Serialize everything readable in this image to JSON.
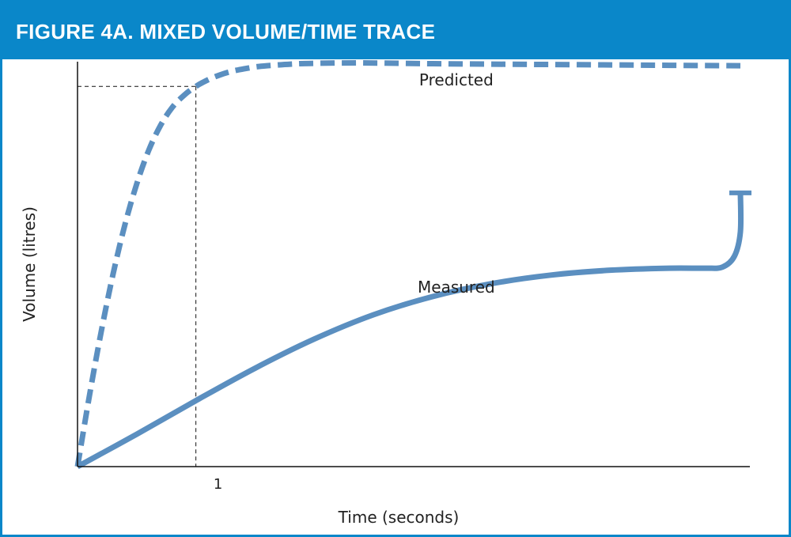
{
  "header": {
    "title": "FIGURE 4A. MIXED VOLUME/TIME TRACE"
  },
  "colors": {
    "header_bg": "#0a87c9",
    "trace": "#5b8fc0",
    "axis": "#111111"
  },
  "chart_data": {
    "type": "line",
    "title": "FIGURE 4A. MIXED VOLUME/TIME TRACE",
    "xlabel": "Time (seconds)",
    "ylabel": "Volume (litres)",
    "x_ticks": [
      1
    ],
    "xlim": [
      0,
      5.68
    ],
    "ylim": [
      0,
      1.0
    ],
    "grid": false,
    "series": [
      {
        "name": "Predicted",
        "style": "dashed",
        "x": [
          0,
          0.1,
          0.2,
          0.3,
          0.4,
          0.5,
          0.6,
          0.7,
          0.8,
          0.9,
          1.0,
          1.1,
          1.2,
          1.3,
          1.4,
          1.5,
          1.6,
          1.8,
          2.0,
          2.4,
          3.0,
          4.0,
          5.0,
          5.6
        ],
        "y": [
          0,
          0.174,
          0.333,
          0.475,
          0.597,
          0.698,
          0.78,
          0.842,
          0.887,
          0.917,
          0.939,
          0.955,
          0.967,
          0.976,
          0.982,
          0.987,
          0.99,
          0.994,
          0.996,
          0.997,
          0.995,
          0.993,
          0.991,
          0.99
        ]
      },
      {
        "name": "Measured",
        "style": "solid",
        "x": [
          0,
          0.5,
          1.0,
          1.5,
          2.0,
          2.5,
          3.0,
          3.5,
          4.0,
          4.5,
          5.0,
          5.3,
          5.45,
          5.55,
          5.6,
          5.6
        ],
        "y": [
          0,
          0.08,
          0.163,
          0.243,
          0.315,
          0.375,
          0.42,
          0.452,
          0.473,
          0.485,
          0.49,
          0.49,
          0.493,
          0.52,
          0.58,
          0.676
        ]
      }
    ],
    "annotations": [
      {
        "type": "dashed-guide",
        "x": 1.0,
        "y": 0.939
      }
    ]
  }
}
